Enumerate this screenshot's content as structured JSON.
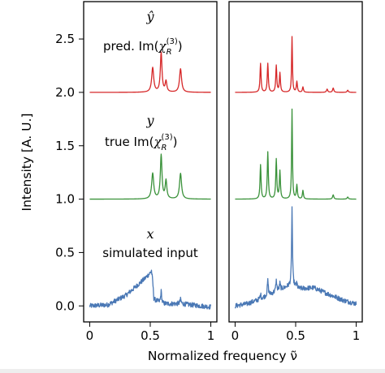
{
  "chart_data": {
    "type": "line",
    "ylabel": "Intensity [A. U.]",
    "xlabel": "Normalized frequency ν̃",
    "ylim": [
      -0.15,
      2.85
    ],
    "xlim": [
      -0.05,
      1.05
    ],
    "yticks": [
      "0.0",
      "0.5",
      "1.0",
      "1.5",
      "2.0",
      "2.5"
    ],
    "ytick_values": [
      0.0,
      0.5,
      1.0,
      1.5,
      2.0,
      2.5
    ],
    "xticks": [
      "0",
      "0.5",
      "1"
    ],
    "xtick_values": [
      0,
      0.5,
      1
    ],
    "grid": false,
    "colors": {
      "pred": "#d62728",
      "true": "#3a923a",
      "input": "#4a78b5"
    },
    "annotations": {
      "pred_symbol": "ŷ",
      "pred_label": "pred. Im(χR(3))",
      "true_symbol": "y",
      "true_label": "true Im(χR(3))",
      "input_symbol": "x",
      "input_label": "simulated input"
    },
    "panels": [
      {
        "series": [
          {
            "role": "pred",
            "offset": 2.0,
            "peaks": [
              [
                0.52,
                0.23,
                0.01
              ],
              [
                0.59,
                0.37,
                0.008
              ],
              [
                0.63,
                0.1,
                0.008
              ],
              [
                0.75,
                0.22,
                0.01
              ]
            ]
          },
          {
            "role": "true",
            "offset": 1.0,
            "peaks": [
              [
                0.52,
                0.24,
                0.01
              ],
              [
                0.59,
                0.41,
                0.008
              ],
              [
                0.63,
                0.17,
                0.008
              ],
              [
                0.75,
                0.24,
                0.01
              ]
            ]
          },
          {
            "role": "input",
            "offset": 0.0,
            "background": [
              [
                0.0,
                0.0
              ],
              [
                0.15,
                0.01
              ],
              [
                0.3,
                0.1
              ],
              [
                0.45,
                0.25
              ],
              [
                0.51,
                0.32
              ],
              [
                0.53,
                0.06
              ],
              [
                0.6,
                0.02
              ],
              [
                0.75,
                0.02
              ],
              [
                1.0,
                -0.01
              ]
            ],
            "peaks": [
              [
                0.52,
                0.04,
                0.006
              ],
              [
                0.59,
                0.11,
                0.005
              ],
              [
                0.75,
                0.04,
                0.006
              ]
            ]
          }
        ]
      },
      {
        "series": [
          {
            "role": "pred",
            "offset": 2.0,
            "peaks": [
              [
                0.21,
                0.27,
                0.005
              ],
              [
                0.27,
                0.27,
                0.005
              ],
              [
                0.34,
                0.25,
                0.005
              ],
              [
                0.37,
                0.18,
                0.005
              ],
              [
                0.47,
                0.52,
                0.004
              ],
              [
                0.51,
                0.1,
                0.005
              ],
              [
                0.56,
                0.05,
                0.005
              ],
              [
                0.76,
                0.03,
                0.006
              ],
              [
                0.81,
                0.04,
                0.006
              ],
              [
                0.93,
                0.02,
                0.006
              ]
            ]
          },
          {
            "role": "true",
            "offset": 1.0,
            "peaks": [
              [
                0.21,
                0.32,
                0.005
              ],
              [
                0.27,
                0.44,
                0.005
              ],
              [
                0.34,
                0.37,
                0.005
              ],
              [
                0.37,
                0.26,
                0.005
              ],
              [
                0.47,
                0.84,
                0.004
              ],
              [
                0.51,
                0.13,
                0.005
              ],
              [
                0.56,
                0.08,
                0.005
              ],
              [
                0.81,
                0.04,
                0.006
              ],
              [
                0.93,
                0.02,
                0.006
              ]
            ]
          },
          {
            "role": "input",
            "offset": 0.0,
            "background": [
              [
                0.0,
                0.0
              ],
              [
                0.1,
                0.02
              ],
              [
                0.2,
                0.06
              ],
              [
                0.35,
                0.14
              ],
              [
                0.47,
                0.2
              ],
              [
                0.52,
                0.16
              ],
              [
                0.65,
                0.17
              ],
              [
                0.75,
                0.12
              ],
              [
                0.9,
                0.05
              ],
              [
                1.0,
                0.02
              ]
            ],
            "peaks": [
              [
                0.21,
                0.04,
                0.005
              ],
              [
                0.27,
                0.14,
                0.005
              ],
              [
                0.34,
                0.1,
                0.005
              ],
              [
                0.37,
                0.06,
                0.005
              ],
              [
                0.47,
                0.72,
                0.004
              ],
              [
                0.51,
                0.04,
                0.005
              ]
            ]
          }
        ]
      }
    ]
  }
}
